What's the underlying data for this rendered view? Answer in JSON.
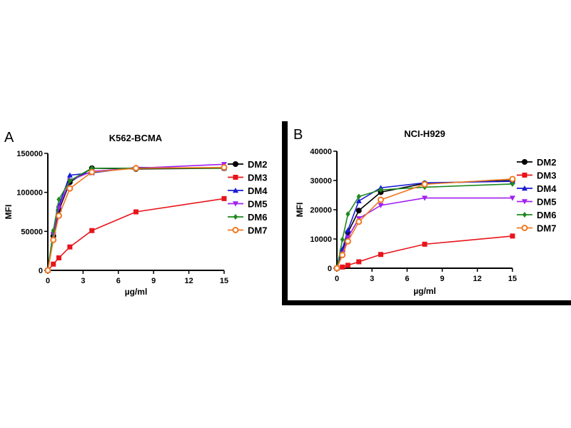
{
  "chart_data": [
    {
      "panel_label": "A",
      "type": "line",
      "title": "K562-BCMA",
      "xlabel": "µg/ml",
      "ylabel": "MFI",
      "xlim": [
        0,
        15
      ],
      "ylim": [
        0,
        150000
      ],
      "xticks": [
        "0",
        "3",
        "6",
        "9",
        "12",
        "15"
      ],
      "yticks": [
        "0",
        "50000",
        "100000",
        "150000"
      ],
      "grid": false,
      "legend": "right",
      "x": [
        0,
        0.47,
        0.94,
        1.875,
        3.75,
        7.5,
        15
      ],
      "series": [
        {
          "name": "DM2",
          "color": "#000000",
          "marker": "circle",
          "values": [
            0,
            44000,
            77000,
            113000,
            131000,
            130000,
            131000
          ]
        },
        {
          "name": "DM3",
          "color": "#e8141b",
          "marker": "square",
          "values": [
            0,
            8000,
            16000,
            30000,
            51000,
            75000,
            92000
          ]
        },
        {
          "name": "DM4",
          "color": "#1a1ad6",
          "marker": "triangle-up",
          "values": [
            0,
            50000,
            83000,
            122000,
            125000,
            132000,
            131000
          ]
        },
        {
          "name": "DM5",
          "color": "#a020f0",
          "marker": "triangle-down",
          "values": [
            0,
            46000,
            80000,
            115000,
            127000,
            131000,
            136000
          ]
        },
        {
          "name": "DM6",
          "color": "#1e8a1e",
          "marker": "diamond",
          "values": [
            0,
            51000,
            91000,
            115000,
            131000,
            131000,
            131000
          ]
        },
        {
          "name": "DM7",
          "color": "#f07820",
          "marker": "open-circle",
          "values": [
            0,
            39000,
            70000,
            105000,
            126000,
            131000,
            132000
          ]
        }
      ]
    },
    {
      "panel_label": "B",
      "type": "line",
      "title": "NCI-H929",
      "xlabel": "µg/ml",
      "ylabel": "MFI",
      "xlim": [
        0,
        15
      ],
      "ylim": [
        0,
        40000
      ],
      "xticks": [
        "0",
        "3",
        "6",
        "9",
        "12",
        "15"
      ],
      "yticks": [
        "0",
        "10000",
        "20000",
        "30000",
        "40000"
      ],
      "grid": false,
      "legend": "right",
      "x": [
        0,
        0.47,
        0.94,
        1.875,
        3.75,
        7.5,
        15
      ],
      "series": [
        {
          "name": "DM2",
          "color": "#000000",
          "marker": "circle",
          "values": [
            0,
            6000,
            12200,
            19700,
            26000,
            29000,
            30000
          ]
        },
        {
          "name": "DM3",
          "color": "#e8141b",
          "marker": "square",
          "values": [
            0,
            400,
            1000,
            2200,
            4700,
            8200,
            11000
          ]
        },
        {
          "name": "DM4",
          "color": "#1a1ad6",
          "marker": "triangle-up",
          "values": [
            0,
            6500,
            13000,
            23000,
            27500,
            29200,
            29700
          ]
        },
        {
          "name": "DM5",
          "color": "#a020f0",
          "marker": "triangle-down",
          "values": [
            0,
            5000,
            10500,
            17000,
            21500,
            24000,
            24000
          ]
        },
        {
          "name": "DM6",
          "color": "#1e8a1e",
          "marker": "diamond",
          "values": [
            0,
            9800,
            18500,
            24500,
            26800,
            27700,
            28800
          ]
        },
        {
          "name": "DM7",
          "color": "#f07820",
          "marker": "open-circle",
          "values": [
            0,
            4500,
            9200,
            15900,
            23400,
            28700,
            30500
          ]
        }
      ]
    }
  ]
}
